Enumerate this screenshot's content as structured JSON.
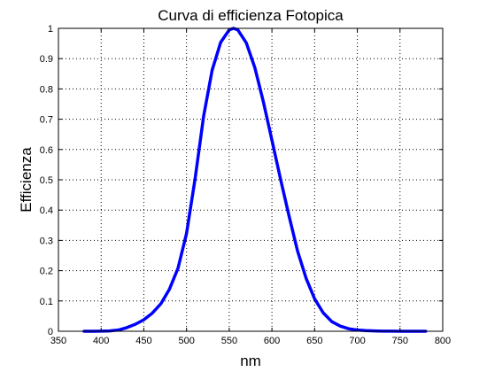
{
  "chart_data": {
    "type": "line",
    "title": "Curva di efficienza Fotopica",
    "xlabel": "nm",
    "ylabel": "Efficienza",
    "xlim": [
      350,
      800
    ],
    "ylim": [
      0,
      1
    ],
    "x_ticks": [
      "350",
      "400",
      "450",
      "500",
      "550",
      "600",
      "650",
      "700",
      "750",
      "800"
    ],
    "y_ticks": [
      "0",
      "0.1",
      "0.2",
      "0.3",
      "0.4",
      "0.5",
      "0.6",
      "0.7",
      "0.8",
      "0.9",
      "1"
    ],
    "grid": true,
    "series": [
      {
        "color": "#0000ff",
        "x": [
          380,
          390,
          400,
          410,
          420,
          430,
          440,
          450,
          460,
          470,
          480,
          490,
          500,
          510,
          520,
          530,
          540,
          550,
          555,
          560,
          570,
          580,
          590,
          600,
          610,
          620,
          630,
          640,
          650,
          660,
          670,
          680,
          690,
          700,
          710,
          720,
          730,
          740,
          750,
          760,
          770,
          780
        ],
        "y": [
          0.0,
          0.0001,
          0.0004,
          0.0012,
          0.004,
          0.012,
          0.023,
          0.038,
          0.06,
          0.091,
          0.139,
          0.208,
          0.323,
          0.503,
          0.71,
          0.862,
          0.954,
          0.995,
          1.0,
          0.995,
          0.952,
          0.87,
          0.757,
          0.631,
          0.503,
          0.381,
          0.265,
          0.175,
          0.107,
          0.061,
          0.032,
          0.017,
          0.0082,
          0.0041,
          0.0021,
          0.001,
          0.0005,
          0.0002,
          0.0001,
          0.0,
          0.0,
          0.0
        ]
      }
    ]
  }
}
